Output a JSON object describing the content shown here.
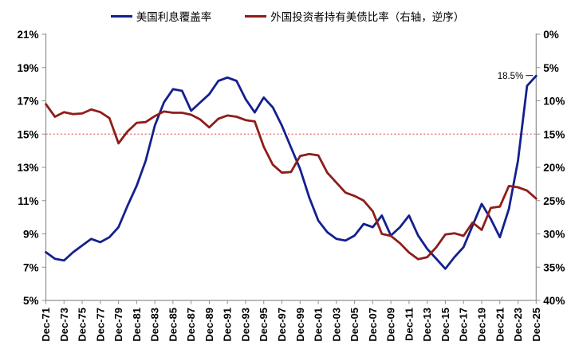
{
  "colors": {
    "series1": "#14208E",
    "series2": "#8E1D19",
    "refline": "#E06666",
    "axis": "#909090",
    "text": "#000000"
  },
  "legend": {
    "item1": "美国利息覆盖率",
    "item2": "外国投资者持有美债比率（右轴，逆序）"
  },
  "chart_data": {
    "type": "line",
    "title": "",
    "legend_position": "top",
    "grid": false,
    "years": [
      1971,
      1972,
      1973,
      1974,
      1975,
      1976,
      1977,
      1978,
      1979,
      1980,
      1981,
      1982,
      1983,
      1984,
      1985,
      1986,
      1987,
      1988,
      1989,
      1990,
      1991,
      1992,
      1993,
      1994,
      1995,
      1996,
      1997,
      1998,
      1999,
      2000,
      2001,
      2002,
      2003,
      2004,
      2005,
      2006,
      2007,
      2008,
      2009,
      2010,
      2011,
      2012,
      2013,
      2014,
      2015,
      2016,
      2017,
      2018,
      2019,
      2020,
      2021,
      2022,
      2023,
      2024,
      2025
    ],
    "x_tick_labels": [
      "Dec-71",
      "Dec-73",
      "Dec-75",
      "Dec-77",
      "Dec-79",
      "Dec-81",
      "Dec-83",
      "Dec-85",
      "Dec-87",
      "Dec-89",
      "Dec-91",
      "Dec-93",
      "Dec-95",
      "Dec-97",
      "Dec-99",
      "Dec-01",
      "Dec-03",
      "Dec-05",
      "Dec-07",
      "Dec-09",
      "Dec-11",
      "Dec-13",
      "Dec-15",
      "Dec-17",
      "Dec-19",
      "Dec-21",
      "Dec-23",
      "Dec-25"
    ],
    "series": [
      {
        "name": "美国利息覆盖率",
        "axis": "left",
        "color": "#14208E",
        "values": [
          7.9,
          7.5,
          7.4,
          7.9,
          8.3,
          8.7,
          8.5,
          8.8,
          9.4,
          10.7,
          11.9,
          13.4,
          15.5,
          16.9,
          17.7,
          17.6,
          16.4,
          16.9,
          17.4,
          18.2,
          18.4,
          18.2,
          17.1,
          16.3,
          17.2,
          16.6,
          15.5,
          14.2,
          12.9,
          11.2,
          9.8,
          9.1,
          8.7,
          8.6,
          8.9,
          9.6,
          9.4,
          10.1,
          8.9,
          9.4,
          10.1,
          8.9,
          8.1,
          7.5,
          6.9,
          7.6,
          8.2,
          9.5,
          10.8,
          9.9,
          8.8,
          10.5,
          13.4,
          17.9,
          18.5
        ]
      },
      {
        "name": "外国投资者持有美债比率（右轴，逆序）",
        "axis": "right",
        "color": "#8E1D19",
        "values": [
          10.5,
          12.4,
          11.7,
          12.0,
          11.9,
          11.3,
          11.7,
          12.6,
          16.4,
          14.6,
          13.3,
          13.2,
          12.3,
          11.6,
          11.8,
          11.8,
          12.1,
          12.8,
          14.0,
          12.7,
          12.2,
          12.4,
          12.9,
          13.1,
          16.9,
          19.6,
          20.8,
          20.7,
          18.3,
          18.0,
          18.2,
          20.8,
          22.3,
          23.8,
          24.3,
          25.0,
          26.6,
          30.0,
          30.3,
          31.4,
          32.8,
          33.8,
          33.5,
          32.0,
          30.1,
          29.9,
          30.3,
          28.3,
          29.4,
          26.1,
          25.9,
          22.8,
          23.0,
          23.5,
          24.7
        ]
      }
    ],
    "left_axis": {
      "min": 5,
      "max": 21,
      "step": 2,
      "labels": [
        "21%",
        "19%",
        "17%",
        "15%",
        "13%",
        "11%",
        "9%",
        "7%",
        "5%"
      ]
    },
    "right_axis": {
      "min": 0,
      "max": 40,
      "step": 5,
      "inverted": true,
      "labels": [
        "0%",
        "5%",
        "10%",
        "15%",
        "20%",
        "25%",
        "30%",
        "35%",
        "40%"
      ]
    },
    "reference_line": {
      "axis": "left",
      "value": 15,
      "style": "dotted"
    },
    "annotation": {
      "text": "18.5%",
      "series": "美国利息覆盖率",
      "x_label": "Dec-25",
      "value": 18.5
    }
  }
}
